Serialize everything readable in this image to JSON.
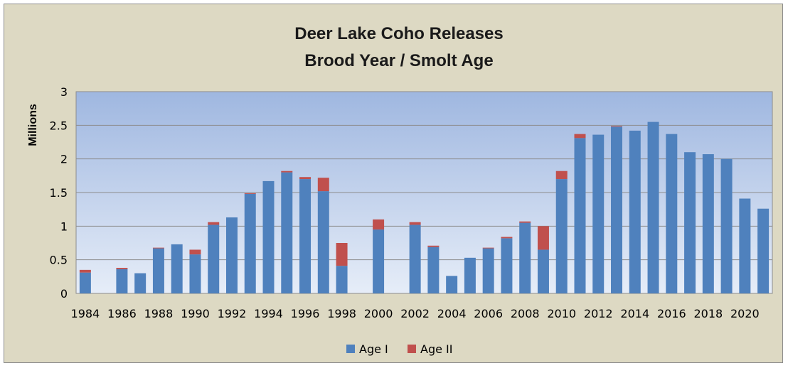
{
  "chart_data": {
    "type": "bar",
    "stacked": true,
    "title": "Deer Lake Coho Releases",
    "subtitle": "Brood Year / Smolt Age",
    "ylabel": "Millions",
    "xlabel": "",
    "ylim": [
      0,
      3
    ],
    "yticks": [
      "0",
      "0.5",
      "1",
      "1.5",
      "2",
      "2.5",
      "3"
    ],
    "categories": [
      1984,
      1985,
      1986,
      1987,
      1988,
      1989,
      1990,
      1991,
      1992,
      1993,
      1994,
      1995,
      1996,
      1997,
      1998,
      1999,
      2000,
      2001,
      2002,
      2003,
      2004,
      2005,
      2006,
      2007,
      2008,
      2009,
      2010,
      2011,
      2012,
      2013,
      2014,
      2015,
      2016,
      2017,
      2018,
      2019,
      2020,
      2021
    ],
    "xtick_labels": [
      "1984",
      "1986",
      "1988",
      "1990",
      "1992",
      "1994",
      "1996",
      "1998",
      "2000",
      "2002",
      "2004",
      "2006",
      "2008",
      "2010",
      "2012",
      "2014",
      "2016",
      "2018",
      "2020"
    ],
    "series": [
      {
        "name": "Age I",
        "color": "#4f81bd",
        "values": [
          0.31,
          0,
          0.36,
          0.3,
          0.67,
          0.73,
          0.58,
          1.02,
          1.13,
          1.48,
          1.67,
          1.8,
          1.7,
          1.52,
          0.41,
          0,
          0.95,
          0,
          1.02,
          0.69,
          0.26,
          0.53,
          0.67,
          0.82,
          1.05,
          0.65,
          1.7,
          2.31,
          2.36,
          2.48,
          2.42,
          2.55,
          2.37,
          2.1,
          2.07,
          2.0,
          1.41,
          1.26
        ]
      },
      {
        "name": "Age II",
        "color": "#c0504d",
        "values": [
          0.04,
          0,
          0.02,
          0,
          0.01,
          0,
          0.07,
          0.04,
          0,
          0.01,
          0,
          0.02,
          0.03,
          0.2,
          0.34,
          0,
          0.15,
          0,
          0.04,
          0.02,
          0,
          0,
          0.01,
          0.02,
          0.02,
          0.35,
          0.12,
          0.06,
          0,
          0.01,
          0,
          0,
          0,
          0,
          0,
          0,
          0,
          0
        ]
      }
    ],
    "gridlines": true,
    "legend_position": "bottom"
  }
}
